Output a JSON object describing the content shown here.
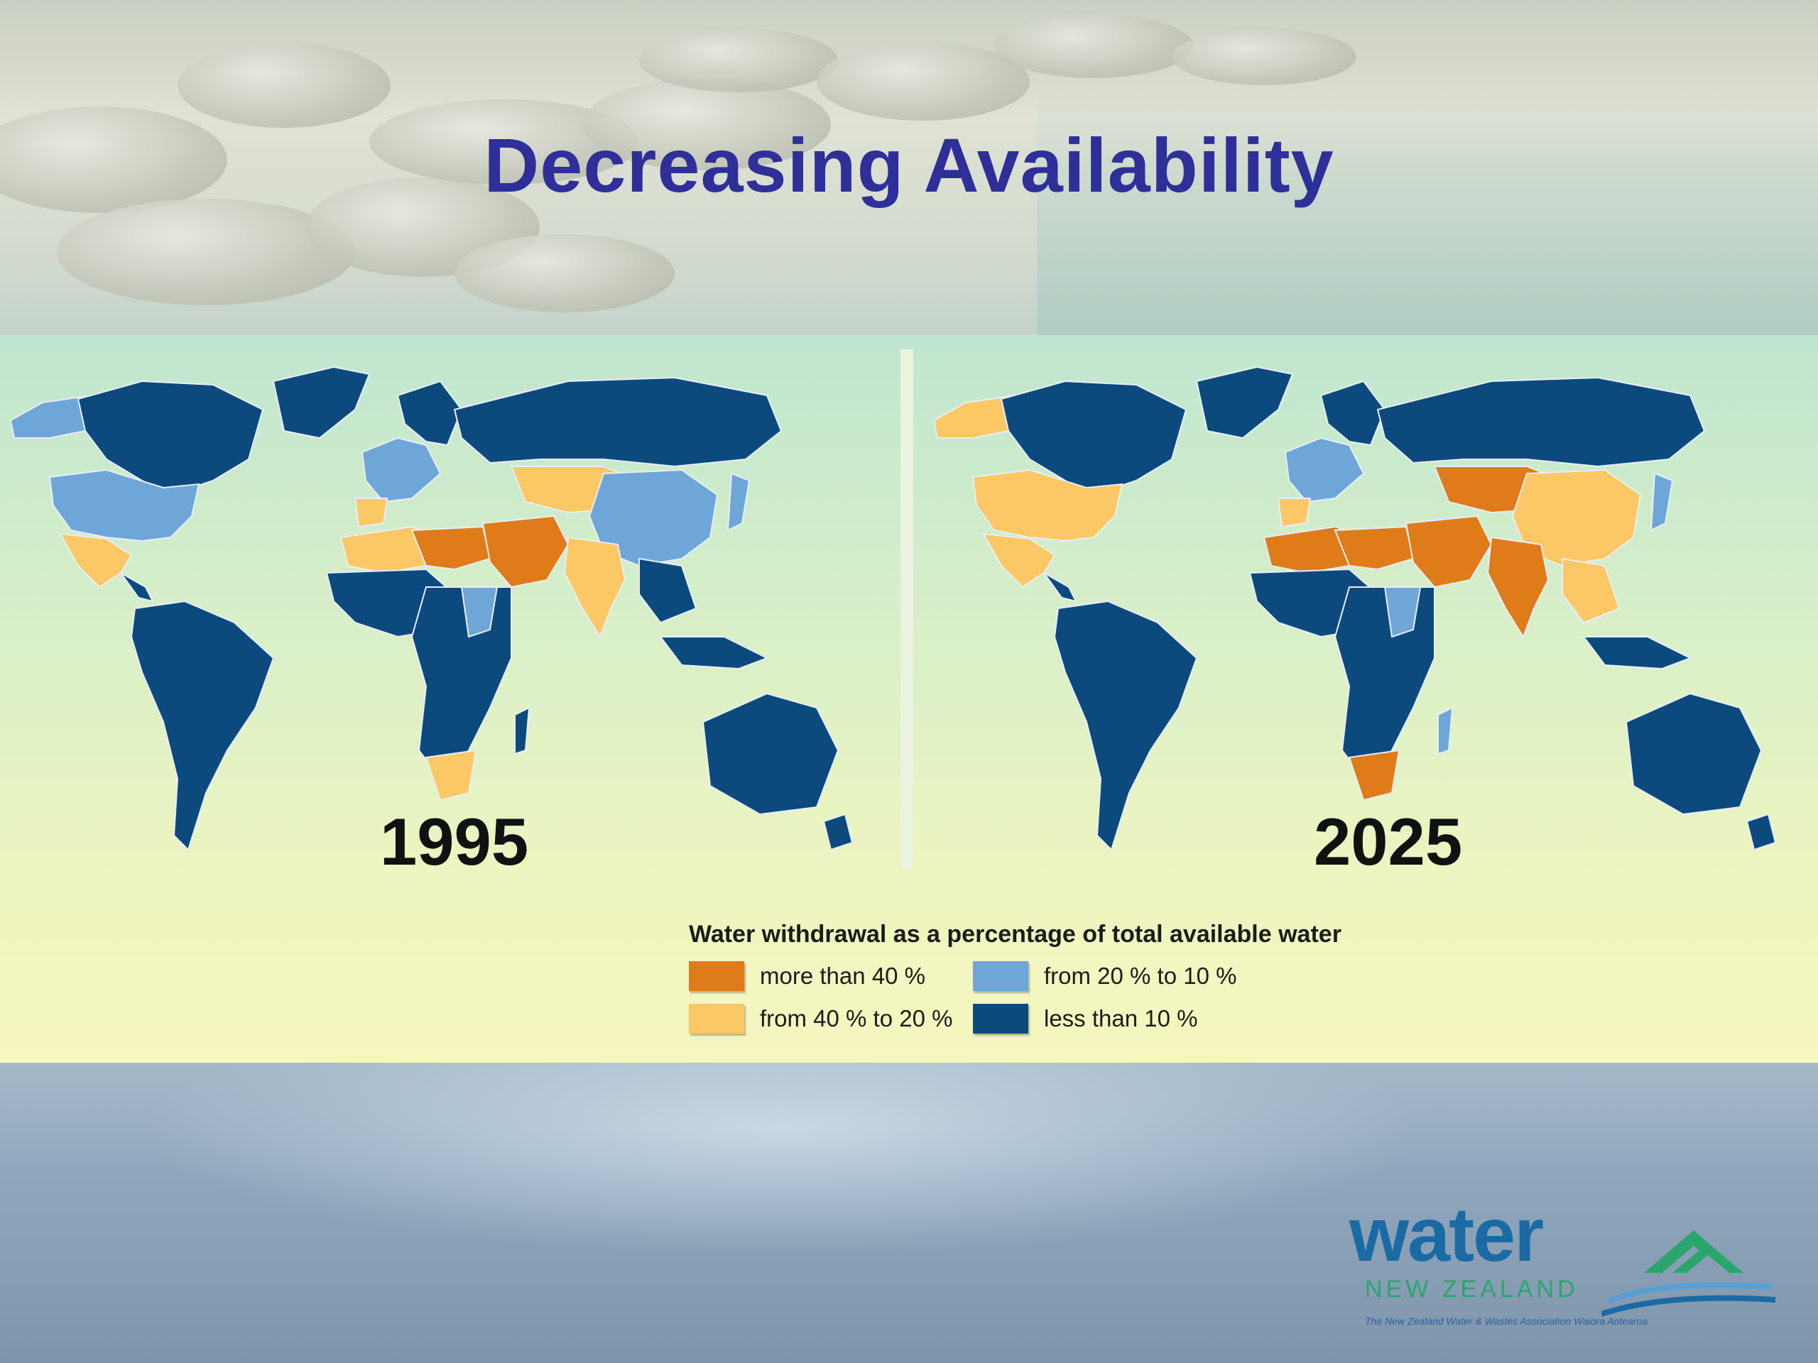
{
  "slide": {
    "title": "Decreasing Availability"
  },
  "maps": [
    {
      "year": "1995"
    },
    {
      "year": "2025"
    }
  ],
  "legend": {
    "title": "Water withdrawal as a percentage of total available water",
    "items": [
      {
        "label": "more than 40 %",
        "color": "#e07b19"
      },
      {
        "label": "from 20 % to 10 %",
        "color": "#6ea6d8"
      },
      {
        "label": "from 40 % to 20 %",
        "color": "#fbc865"
      },
      {
        "label": "less than 10 %",
        "color": "#0c4a7e"
      }
    ]
  },
  "logo": {
    "word": "water",
    "subtitle": "NEW ZEALAND",
    "tagline": "The New Zealand Water & Wastes Association Waiora Aotearoa"
  }
}
